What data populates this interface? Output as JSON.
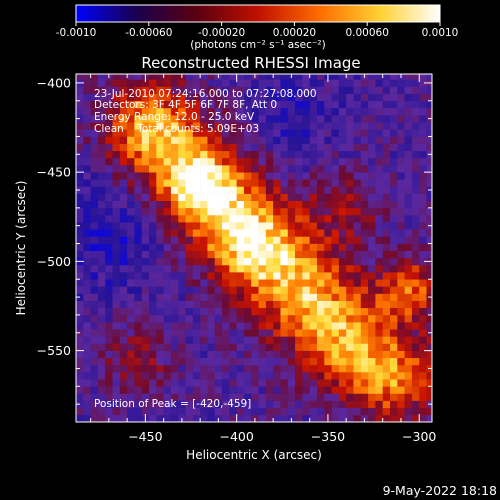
{
  "colorbar": {
    "tick_labels": [
      "-0.0010",
      "-0.00060",
      "-0.00020",
      "0.00020",
      "0.00060",
      "0.0010"
    ],
    "tick_values": [
      -0.001,
      -0.0006,
      -0.0002,
      0.0002,
      0.0006,
      0.001
    ],
    "range": [
      -0.001,
      0.001
    ],
    "unit_label": "(photons cm⁻² s⁻¹ asec⁻²)",
    "colors": [
      "#0000ff",
      "#1a004d",
      "#5a0010",
      "#c01000",
      "#ff6a00",
      "#ffd030",
      "#ffffff"
    ]
  },
  "chart_data": {
    "type": "heatmap",
    "title": "Reconstructed RHESSI Image",
    "xlabel": "Heliocentric X (arcsec)",
    "ylabel": "Heliocentric Y (arcsec)",
    "xlim": [
      -488,
      -293
    ],
    "ylim": [
      -590,
      -395
    ],
    "x_ticks": [
      -450,
      -400,
      -350,
      -300
    ],
    "y_ticks": [
      -400,
      -450,
      -500,
      -550
    ],
    "x_tick_labels": [
      "−450",
      "−400",
      "−350",
      "−300"
    ],
    "y_tick_labels": [
      "−400",
      "−450",
      "−500",
      "−550"
    ],
    "peak": {
      "x": -420,
      "y": -459
    },
    "annotations": [
      "23-Jul-2010 07:24:16.000 to 07:27:08.000",
      "Detectors: 3F 4F 5F 6F 7F 8F, Att 0",
      "Energy Range: 12.0 - 25.0 keV",
      "Clean    Total counts: 5.09E+03"
    ],
    "peak_label": "Position of Peak = [-420,-459]",
    "grid": false
  },
  "footer": {
    "date": "9-May-2022 18:18"
  }
}
